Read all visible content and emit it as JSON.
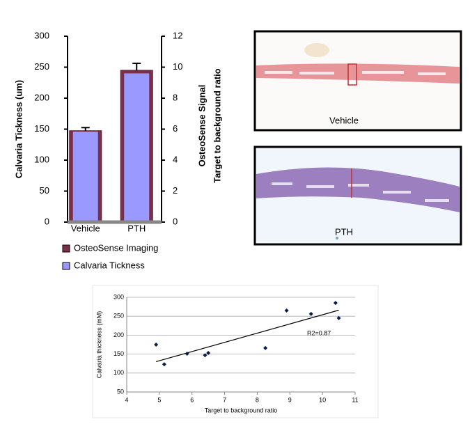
{
  "chart_data": [
    {
      "type": "bar",
      "categories": [
        "Vehicle",
        "PTH"
      ],
      "ylabel": "Calvaria Tickness (um)",
      "y2label": [
        "OsteoSense Signal",
        "Target to background ratio"
      ],
      "ylim": [
        0,
        300
      ],
      "yticks": [
        0,
        50,
        100,
        150,
        200,
        250,
        300
      ],
      "y2lim": [
        0,
        12
      ],
      "y2ticks": [
        0,
        2,
        4,
        6,
        8,
        10,
        12
      ],
      "series": [
        {
          "name": "OsteoSense Imaging",
          "color": "#7a2f4a",
          "axis": "y2",
          "values": [
            5.9,
            9.8
          ],
          "errors": [
            0.2,
            0.45
          ]
        },
        {
          "name": "Calvaria Tickness",
          "color": "#9999ff",
          "values": [
            146,
            240
          ]
        }
      ],
      "legend": "bottom-left"
    },
    {
      "type": "scatter",
      "xlabel": "Target to background ratio",
      "ylabel": "Calvaria thickness (mM)",
      "xlim": [
        4,
        11
      ],
      "xticks": [
        4,
        5,
        6,
        7,
        8,
        9,
        10,
        11
      ],
      "ylim": [
        50,
        300
      ],
      "yticks": [
        50,
        100,
        150,
        200,
        250,
        300
      ],
      "grid": true,
      "series": [
        {
          "color": "#0a1a4a",
          "x": [
            4.9,
            5.15,
            5.85,
            6.4,
            6.5,
            8.25,
            8.9,
            9.65,
            10.4,
            10.5
          ],
          "values": [
            175,
            123,
            151,
            147,
            153,
            166,
            265,
            256,
            285,
            245
          ]
        }
      ],
      "trendline": {
        "x": [
          4.9,
          10.5
        ],
        "y": [
          130,
          266
        ]
      },
      "annotation": "R2=0.87"
    }
  ],
  "images": [
    {
      "caption": "Vehicle"
    },
    {
      "caption": "PTH"
    }
  ]
}
